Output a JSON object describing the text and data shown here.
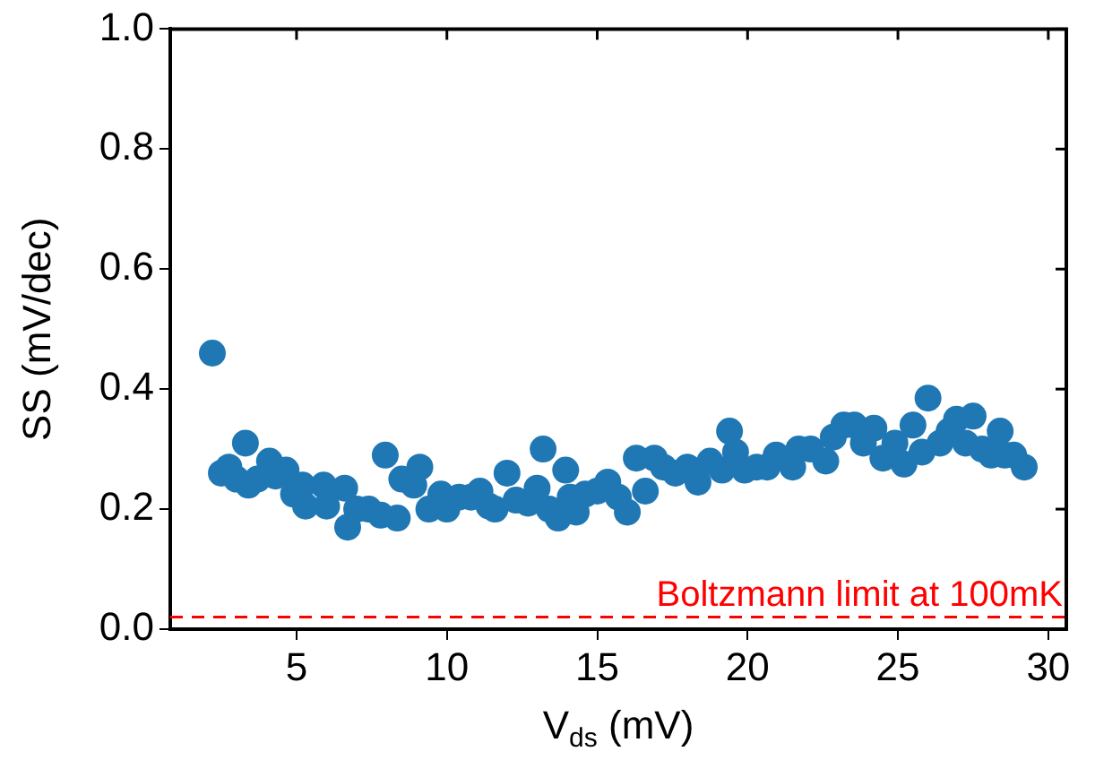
{
  "chart_data": {
    "type": "scatter",
    "xlabel": "V$_{ds}$ (mV)",
    "ylabel": "SS (mV/dec)",
    "color": "#1f77b4",
    "marker": "circle",
    "grid": false,
    "xlim": [
      0.8,
      30.6
    ],
    "ylim": [
      0,
      1
    ],
    "xticks": [
      5,
      10,
      15,
      20,
      25,
      30
    ],
    "yticks": [
      {
        "value": 0,
        "label": "0.0"
      },
      0.2,
      0.4,
      0.6,
      0.8,
      {
        "value": 1,
        "label": "1.0"
      }
    ],
    "x": [
      2.2,
      2.5,
      2.75,
      3.0,
      3.3,
      3.4,
      3.7,
      4.1,
      4.3,
      4.65,
      4.9,
      5.2,
      5.3,
      5.9,
      6.0,
      6.6,
      6.7,
      7.0,
      7.4,
      7.8,
      7.95,
      8.35,
      8.5,
      8.9,
      9.1,
      9.4,
      9.8,
      10.0,
      10.4,
      10.8,
      11.1,
      11.4,
      11.6,
      12.0,
      12.3,
      12.7,
      13.0,
      13.2,
      13.4,
      13.7,
      13.95,
      14.1,
      14.3,
      14.6,
      15.0,
      15.35,
      15.7,
      16.0,
      16.3,
      16.6,
      16.9,
      17.2,
      17.6,
      18.0,
      18.35,
      18.75,
      19.15,
      19.4,
      19.6,
      19.9,
      20.3,
      20.65,
      20.95,
      21.5,
      21.7,
      22.1,
      22.6,
      22.85,
      23.2,
      23.55,
      23.85,
      24.2,
      24.5,
      24.9,
      25.2,
      25.5,
      25.8,
      26.0,
      26.4,
      26.7,
      26.95,
      27.25,
      27.5,
      27.8,
      28.1,
      28.4,
      28.55,
      28.85,
      29.2
    ],
    "values": [
      0.46,
      0.26,
      0.27,
      0.25,
      0.31,
      0.24,
      0.25,
      0.28,
      0.255,
      0.265,
      0.225,
      0.24,
      0.205,
      0.24,
      0.205,
      0.235,
      0.17,
      0.2,
      0.2,
      0.19,
      0.29,
      0.185,
      0.25,
      0.24,
      0.27,
      0.2,
      0.225,
      0.2,
      0.22,
      0.22,
      0.23,
      0.205,
      0.2,
      0.26,
      0.215,
      0.21,
      0.235,
      0.3,
      0.2,
      0.185,
      0.265,
      0.22,
      0.195,
      0.225,
      0.23,
      0.245,
      0.22,
      0.195,
      0.285,
      0.23,
      0.285,
      0.27,
      0.26,
      0.27,
      0.245,
      0.28,
      0.265,
      0.33,
      0.295,
      0.265,
      0.27,
      0.27,
      0.29,
      0.27,
      0.3,
      0.3,
      0.28,
      0.32,
      0.34,
      0.34,
      0.31,
      0.335,
      0.285,
      0.31,
      0.275,
      0.34,
      0.295,
      0.385,
      0.31,
      0.33,
      0.35,
      0.31,
      0.355,
      0.3,
      0.29,
      0.33,
      0.29,
      0.29,
      0.27
    ],
    "ref_lines": [
      {
        "axis": "y",
        "value": 0.02,
        "label": "Boltzmann limit at 100mK",
        "color": "#ff0000",
        "line_style": "dashed"
      }
    ]
  }
}
